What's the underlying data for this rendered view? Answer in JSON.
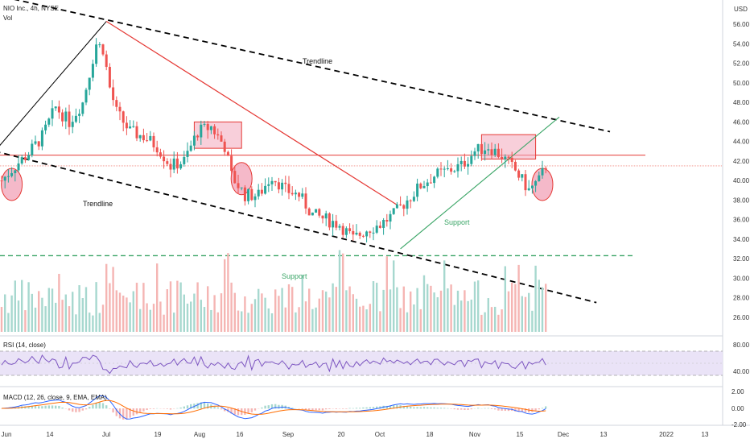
{
  "header": {
    "symbol": "NIO Inc., 4h, NYSE",
    "vol_label": "Vol",
    "currency": "USD"
  },
  "panes": {
    "rsi_label": "RSI (14, close)",
    "macd_label": "MACD (12, 26, close, 9, EMA, EMA)"
  },
  "annotations": {
    "trendline_top": "Trendline",
    "trendline_left": "Trendline",
    "support_diag": "Support",
    "support_horiz": "Support"
  },
  "colors": {
    "up": "#26a69a",
    "down": "#ef5350",
    "trend": "#000000",
    "red_line": "#e53935",
    "support": "#3aa566",
    "box_fill": "#f2a8bb",
    "rsi_band": "#e8e0f6",
    "rsi_line": "#7e57c2",
    "macd_line": "#2962ff",
    "signal_line": "#ff6d00"
  },
  "chart_data": {
    "type": "candlestick",
    "title": "NIO Inc., 4h, NYSE",
    "price_axis": {
      "unit": "USD",
      "ticks": [
        "56.00",
        "54.00",
        "52.00",
        "50.00",
        "48.00",
        "46.00",
        "44.00",
        "42.00",
        "40.00",
        "38.00",
        "36.00",
        "34.00",
        "32.00",
        "30.00",
        "28.00",
        "26.00"
      ],
      "range": [
        24.5,
        57.5
      ]
    },
    "rsi_axis": {
      "ticks": [
        "80.00",
        "40.00"
      ]
    },
    "macd_axis": {
      "ticks": [
        "2.00",
        "0.00",
        "-2.00"
      ]
    },
    "time_axis": [
      "Jun",
      "14",
      "Jul",
      "19",
      "Aug",
      "16",
      "Sep",
      "20",
      "Oct",
      "18",
      "Nov",
      "15",
      "Dec",
      "13",
      "2022",
      "13"
    ],
    "price_path": [
      [
        0,
        40.0
      ],
      [
        4,
        41.5
      ],
      [
        8,
        42.8
      ],
      [
        12,
        44.5
      ],
      [
        16,
        47.5
      ],
      [
        20,
        46.0
      ],
      [
        24,
        48.0
      ],
      [
        28,
        54.0
      ],
      [
        30,
        53.5
      ],
      [
        32,
        49.5
      ],
      [
        34,
        47.0
      ],
      [
        38,
        45.0
      ],
      [
        42,
        44.5
      ],
      [
        46,
        43.5
      ],
      [
        50,
        41.5
      ],
      [
        54,
        42.0
      ],
      [
        58,
        45.0
      ],
      [
        62,
        45.5
      ],
      [
        66,
        43.5
      ],
      [
        68,
        40.5
      ],
      [
        72,
        38.5
      ],
      [
        76,
        38.5
      ],
      [
        80,
        40.5
      ],
      [
        84,
        39.0
      ],
      [
        88,
        38.5
      ],
      [
        92,
        36.5
      ],
      [
        96,
        36.0
      ],
      [
        100,
        35.5
      ],
      [
        104,
        34.0
      ],
      [
        108,
        35.0
      ],
      [
        112,
        35.5
      ],
      [
        116,
        36.5
      ],
      [
        120,
        38.0
      ],
      [
        124,
        39.5
      ],
      [
        128,
        40.5
      ],
      [
        132,
        41.0
      ],
      [
        136,
        41.5
      ],
      [
        140,
        43.0
      ],
      [
        144,
        43.5
      ],
      [
        148,
        42.5
      ],
      [
        152,
        41.0
      ],
      [
        156,
        39.0
      ],
      [
        159,
        40.0
      ],
      [
        161,
        41.5
      ]
    ],
    "levels": {
      "resistance": 42.6,
      "last_price": 41.5,
      "horizontal_support": 32.3
    },
    "trendlines": {
      "upper": [
        [
          -2,
          59.0
        ],
        [
          180,
          45.0
        ]
      ],
      "lower": [
        [
          -2,
          43.0
        ],
        [
          176,
          27.5
        ]
      ],
      "rise": [
        [
          -2,
          43.0
        ],
        [
          31,
          56.3
        ]
      ],
      "red_down": [
        [
          31,
          56.3
        ],
        [
          117,
          37.5
        ]
      ],
      "support_up": [
        [
          118,
          33.0
        ],
        [
          165,
          46.5
        ]
      ]
    },
    "highlight_boxes": [
      {
        "x0": 57,
        "x1": 71,
        "y0": 43.3,
        "y1": 46.0
      },
      {
        "x0": 142,
        "x1": 158,
        "y0": 42.2,
        "y1": 44.7
      }
    ],
    "highlight_circles": [
      {
        "x": 3,
        "y": 39.6
      },
      {
        "x": 71,
        "y": 40.2
      },
      {
        "x": 160,
        "y": 39.6
      }
    ]
  }
}
